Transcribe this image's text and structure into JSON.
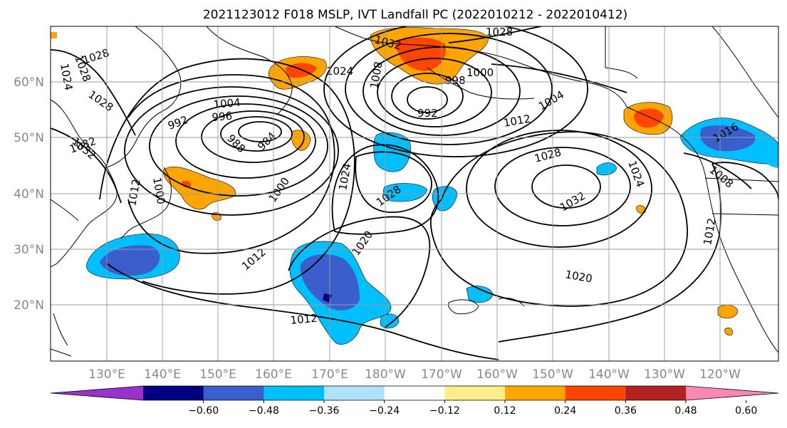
{
  "title": "2021123012 F018 MSLP, IVT Landfall PC (2022010212 - 2022010412)",
  "lon_labels": [
    "130°E",
    "140°E",
    "150°E",
    "160°E",
    "170°E",
    "180°W",
    "170°W",
    "160°W",
    "150°W",
    "140°W",
    "130°W",
    "120°W"
  ],
  "lat_labels": [
    "60°N",
    "50°N",
    "40°N",
    "30°N",
    "20°N"
  ],
  "colorbar": {
    "colors": [
      "#9932cc",
      "#000080",
      "#3a5fcd",
      "#00bfff",
      "#b0e2ff",
      "#ffffff",
      "#ffec8b",
      "#ffa500",
      "#ff4500",
      "#b22222",
      "#ff87b4"
    ],
    "ticks": [
      "−0.60",
      "−0.48",
      "−0.36",
      "−0.24",
      "−0.12",
      "0.12",
      "0.24",
      "0.36",
      "0.48",
      "0.60"
    ]
  },
  "isobar_labels": [
    {
      "text": "1028",
      "rot": -18
    },
    {
      "text": "1032",
      "rot": -20
    },
    {
      "text": "1024",
      "rot": 0
    },
    {
      "text": "1000",
      "rot": 0
    },
    {
      "text": "1008",
      "rot": -80
    },
    {
      "text": "998",
      "rot": 0
    },
    {
      "text": "992",
      "rot": 0
    },
    {
      "text": "1012",
      "rot": -10
    },
    {
      "text": "1004",
      "rot": -30
    },
    {
      "text": "1028",
      "rot": -70
    },
    {
      "text": "1024",
      "rot": -80
    },
    {
      "text": "1028",
      "rot": 65
    },
    {
      "text": "1032",
      "rot": 55
    },
    {
      "text": "992",
      "rot": -20
    },
    {
      "text": "996",
      "rot": -5
    },
    {
      "text": "1004",
      "rot": -5
    },
    {
      "text": "988",
      "rot": 45
    },
    {
      "text": "984",
      "rot": -45
    },
    {
      "text": "1024",
      "rot": -80
    },
    {
      "text": "1000",
      "rot": -55
    },
    {
      "text": "1028",
      "rot": -35
    },
    {
      "text": "1020",
      "rot": -55
    },
    {
      "text": "1012",
      "rot": -40
    },
    {
      "text": "1012",
      "rot": -5
    },
    {
      "text": "1028",
      "rot": -15
    },
    {
      "text": "1032",
      "rot": -30
    },
    {
      "text": "1020",
      "rot": 10
    },
    {
      "text": "1024",
      "rot": 70
    },
    {
      "text": "1016",
      "rot": -30
    },
    {
      "text": "1008",
      "rot": 40
    },
    {
      "text": "1012",
      "rot": -80
    },
    {
      "text": "1032",
      "rot": -15
    },
    {
      "text": "1028",
      "rot": -20
    },
    {
      "text": "1012",
      "rot": -10
    },
    {
      "text": "1000",
      "rot": 0
    }
  ]
}
